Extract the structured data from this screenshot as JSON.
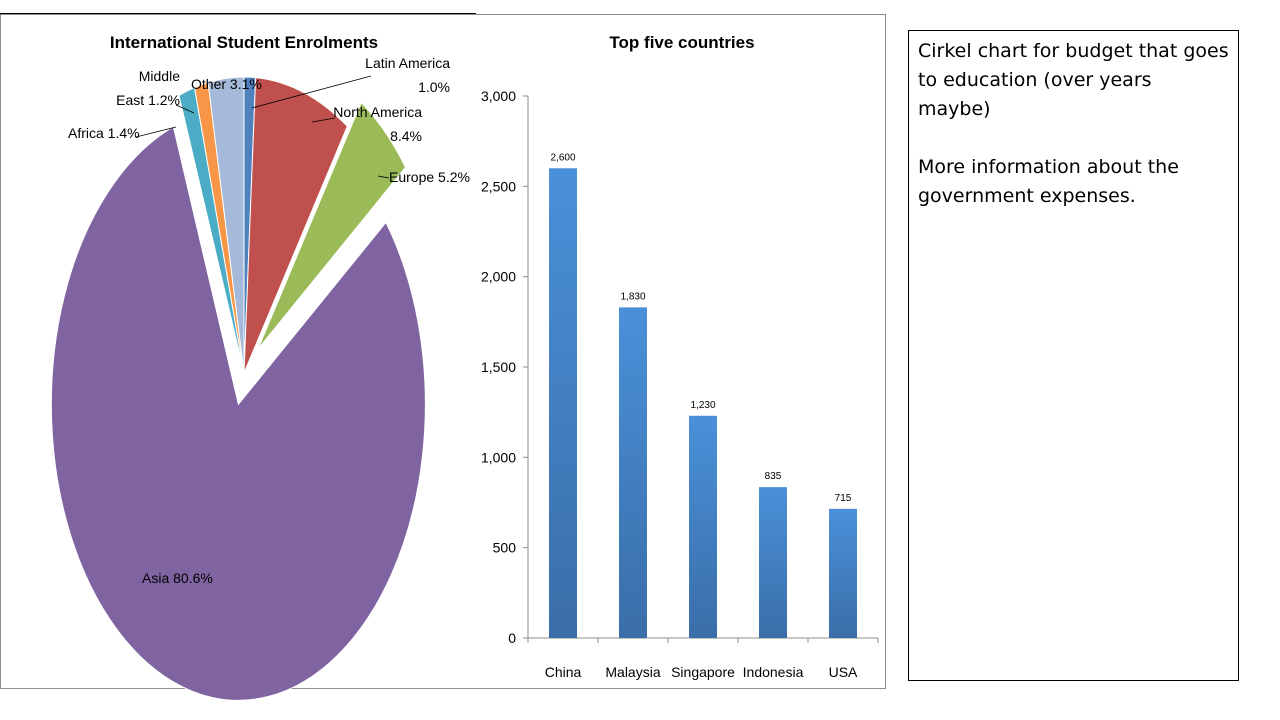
{
  "chart_data": [
    {
      "type": "pie",
      "title": "International Student Enrolments",
      "categories": [
        "Latin America",
        "North America",
        "Europe",
        "Asia",
        "Africa",
        "Middle East",
        "Other"
      ],
      "values": [
        1.0,
        8.4,
        5.2,
        80.6,
        1.4,
        1.2,
        3.1
      ],
      "unit": "%",
      "labels": [
        "Latin America 1.0%",
        "North America 8.4%",
        "Europe 5.2%",
        "Asia 80.6%",
        "Africa 1.4%",
        "Middle East 1.2%",
        "Other 3.1%"
      ],
      "colors": [
        "#4f81bd",
        "#c0504d",
        "#9bbb59",
        "#8064a2",
        "#4bacc6",
        "#f79646",
        "#a5b9da"
      ],
      "exploded": [
        "Europe",
        "Asia"
      ]
    },
    {
      "type": "bar",
      "title": "Top five countries",
      "categories": [
        "China",
        "Malaysia",
        "Singapore",
        "Indonesia",
        "USA"
      ],
      "values": [
        2600,
        1830,
        1230,
        835,
        715
      ],
      "data_labels": [
        "2,600",
        "1,830",
        "1,230",
        "835",
        "715"
      ],
      "ylim": [
        0,
        3000
      ],
      "yticks": [
        "0",
        "500",
        "1,000",
        "1,500",
        "2,000",
        "2,500",
        "3,000"
      ],
      "xlabel": "",
      "ylabel": "",
      "bar_color": "#4a90d9",
      "grid": false
    }
  ],
  "notes": {
    "line1": "Cirkel chart for budget that goes to education (over years maybe)",
    "line2": "More information about the government expenses."
  }
}
